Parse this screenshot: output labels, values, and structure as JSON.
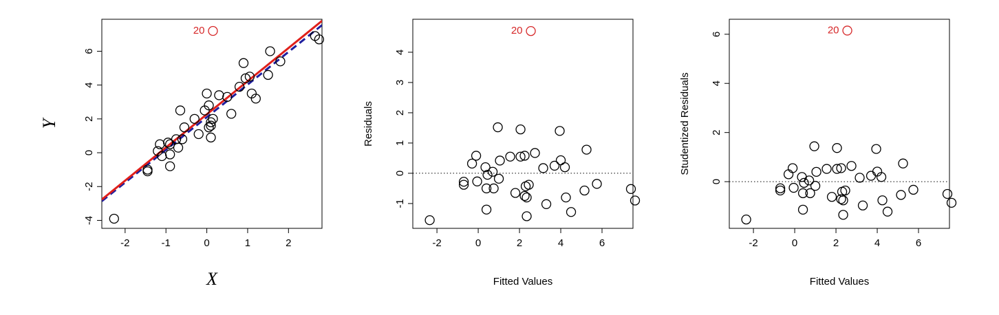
{
  "chart_data": [
    {
      "type": "scatter",
      "x_label": "X",
      "y_label": "Y",
      "math_labels": true,
      "x": [
        -2.27,
        -1.45,
        -1.45,
        -1.2,
        -1.15,
        -1.1,
        -0.95,
        -0.9,
        -0.9,
        -0.9,
        -0.75,
        -0.7,
        -0.65,
        -0.6,
        -0.55,
        -0.3,
        -0.2,
        -0.05,
        0.0,
        0.05,
        0.05,
        0.1,
        0.1,
        0.15,
        0.1,
        0.3,
        0.5,
        0.6,
        0.8,
        0.9,
        0.95,
        1.05,
        1.1,
        1.2,
        1.5,
        1.55,
        1.8,
        2.65,
        2.75
      ],
      "values": [
        -3.9,
        -1.0,
        -1.1,
        0.1,
        0.5,
        -0.2,
        0.6,
        0.5,
        -0.8,
        -0.1,
        0.8,
        0.3,
        2.5,
        0.8,
        1.5,
        2.0,
        1.1,
        2.5,
        3.5,
        2.8,
        1.5,
        1.8,
        0.9,
        2.0,
        1.6,
        3.4,
        3.3,
        2.3,
        3.9,
        5.3,
        4.4,
        4.5,
        3.5,
        3.2,
        4.6,
        6.0,
        5.4,
        6.9,
        6.7
      ],
      "color": "#000000",
      "outlier": {
        "label": "20",
        "x": 0.15,
        "y": 7.2,
        "color": "#d62728"
      },
      "fit_lines": [
        {
          "intercept": 2.1,
          "slope": 1.93,
          "color": "#1f1f9e",
          "dashed": true
        },
        {
          "intercept": 2.27,
          "slope": 1.96,
          "color": "#e0201b",
          "dashed": false
        }
      ],
      "xlim": [
        -2.57,
        2.82
      ],
      "ylim": [
        -4.47,
        7.89
      ],
      "xticks": [
        -2,
        -1,
        0,
        1,
        2
      ],
      "yticks": [
        -4,
        -2,
        0,
        2,
        4,
        6
      ]
    },
    {
      "type": "scatter",
      "x_label": "Fitted Values",
      "y_label": "Residuals",
      "math_labels": false,
      "x": [
        -2.35,
        -0.7,
        -0.7,
        -0.3,
        -0.1,
        -0.05,
        0.35,
        0.4,
        0.4,
        0.45,
        0.7,
        0.75,
        0.95,
        1.0,
        1.05,
        1.55,
        1.8,
        2.05,
        2.05,
        2.25,
        2.25,
        2.3,
        2.35,
        2.35,
        2.45,
        2.75,
        3.15,
        3.3,
        3.7,
        3.95,
        4.0,
        4.2,
        4.25,
        4.5,
        5.15,
        5.25,
        5.75,
        7.4,
        7.6
      ],
      "values": [
        -1.55,
        -0.28,
        -0.38,
        0.32,
        0.58,
        -0.27,
        0.2,
        -0.5,
        -1.2,
        -0.05,
        0.05,
        -0.5,
        1.52,
        -0.18,
        0.42,
        0.55,
        -0.65,
        0.55,
        1.45,
        0.58,
        -0.75,
        -0.43,
        -1.42,
        -0.8,
        -0.38,
        0.67,
        0.17,
        -1.02,
        0.25,
        1.4,
        0.43,
        0.2,
        -0.8,
        -1.28,
        -0.57,
        0.78,
        -0.35,
        -0.52,
        -0.9
      ],
      "color": "#000000",
      "outlier": {
        "label": "20",
        "x": 2.55,
        "y": 4.7,
        "color": "#d62728"
      },
      "reference_line": {
        "y": 0,
        "dotted": true
      },
      "xlim": [
        -3.17,
        7.5
      ],
      "ylim": [
        -1.82,
        5.09
      ],
      "xticks": [
        -2,
        0,
        2,
        4,
        6
      ],
      "yticks": [
        -1,
        0,
        1,
        2,
        3,
        4
      ]
    },
    {
      "type": "scatter",
      "x_label": "Fitted Values",
      "y_label": "Studentized Residuals",
      "math_labels": false,
      "x": [
        -2.35,
        -0.7,
        -0.7,
        -0.3,
        -0.1,
        -0.05,
        0.35,
        0.4,
        0.4,
        0.45,
        0.7,
        0.75,
        0.95,
        1.0,
        1.05,
        1.55,
        1.8,
        2.05,
        2.05,
        2.25,
        2.25,
        2.3,
        2.35,
        2.35,
        2.45,
        2.75,
        3.15,
        3.3,
        3.7,
        3.95,
        4.0,
        4.2,
        4.25,
        4.5,
        5.15,
        5.25,
        5.75,
        7.4,
        7.6
      ],
      "values": [
        -1.54,
        -0.27,
        -0.36,
        0.3,
        0.55,
        -0.25,
        0.19,
        -0.47,
        -1.14,
        -0.05,
        0.05,
        -0.47,
        1.44,
        -0.17,
        0.4,
        0.52,
        -0.62,
        0.52,
        1.37,
        0.55,
        -0.71,
        -0.41,
        -1.35,
        -0.76,
        -0.36,
        0.64,
        0.16,
        -0.97,
        0.24,
        1.33,
        0.41,
        0.19,
        -0.76,
        -1.22,
        -0.54,
        0.74,
        -0.33,
        -0.5,
        -0.86
      ],
      "color": "#000000",
      "outlier": {
        "label": "20",
        "x": 2.55,
        "y": 6.15,
        "color": "#d62728"
      },
      "reference_line": {
        "y": 0,
        "dotted": true
      },
      "xlim": [
        -3.17,
        7.5
      ],
      "ylim": [
        -1.9,
        6.61
      ],
      "xticks": [
        -2,
        0,
        2,
        4,
        6
      ],
      "yticks": [
        0,
        2,
        4,
        6
      ]
    }
  ]
}
